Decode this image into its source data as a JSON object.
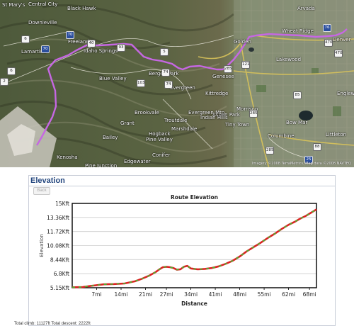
{
  "map": {
    "places": [
      "St Mary's",
      "Central City",
      "Black Hawk",
      "Arvada",
      "Wheat Ridge",
      "Denver",
      "Golden",
      "Lakewood",
      "Idaho Springs",
      "Lamartine",
      "Freeland",
      "Evergreen",
      "Kittredge",
      "Conifer",
      "Englewood",
      "Littleton",
      "Blue Valley",
      "Bergen Park",
      "Genesee",
      "Morrison",
      "Aspen Park",
      "Brookvale",
      "Pine Junction",
      "Edgewater",
      "Hogback",
      "Marshdale",
      "Troutdale",
      "Indian Hills",
      "Tiny Town",
      "Bow Mar",
      "Columbine",
      "Pine Valley",
      "Grant",
      "Bailey",
      "Evergreen Mtn",
      "Kenosha",
      "Downieville"
    ],
    "shields": [
      "6",
      "70",
      "70",
      "40",
      "103",
      "74",
      "74",
      "285",
      "285",
      "93",
      "121",
      "285",
      "25",
      "470",
      "470",
      "5",
      "6",
      "2",
      "85",
      "88",
      "76"
    ],
    "attribution": "Imagery ©2008 TerraMetrics, Map data ©2008 NAVTEQ"
  },
  "panel": {
    "title": "Elevation",
    "back_label": "Back",
    "footer": "Total climb: 11127ft     Total descent: 2222ft"
  },
  "chart_data": {
    "type": "line",
    "title": "Route Elevation",
    "xlabel": "Distance",
    "ylabel": "Elevation",
    "x_unit": "mi",
    "y_unit": "ft",
    "xlim": [
      0,
      70
    ],
    "ylim": [
      5150,
      15000
    ],
    "x_ticks": [
      "7mi",
      "14mi",
      "21mi",
      "27mi",
      "34mi",
      "41mi",
      "48mi",
      "55mi",
      "62mi",
      "68mi"
    ],
    "y_ticks": [
      "5.15Kft",
      "6.8Kft",
      "8.44Kft",
      "10.08Kft",
      "11.72Kft",
      "13.36Kft",
      "15Kft"
    ],
    "x": [
      0,
      3,
      6,
      9,
      12,
      15,
      18,
      20,
      22,
      24,
      25,
      26,
      27,
      28,
      29,
      30,
      31,
      32,
      33,
      34,
      35,
      36,
      38,
      40,
      42,
      44,
      46,
      48,
      50,
      52,
      54,
      56,
      58,
      60,
      62,
      64,
      65,
      66,
      67,
      68,
      70
    ],
    "y": [
      5200,
      5230,
      5400,
      5550,
      5580,
      5650,
      5900,
      6200,
      6550,
      7000,
      7300,
      7550,
      7600,
      7550,
      7450,
      7250,
      7300,
      7600,
      7700,
      7400,
      7350,
      7300,
      7350,
      7450,
      7650,
      7950,
      8300,
      8800,
      9400,
      9900,
      10400,
      10950,
      11450,
      12000,
      12500,
      12900,
      13150,
      13350,
      13550,
      13800,
      14300
    ],
    "grid": true,
    "colors": {
      "line": "#dd2222",
      "line_dash": "#44bb33",
      "frame": "#000000",
      "grid": "#cccccc"
    }
  }
}
